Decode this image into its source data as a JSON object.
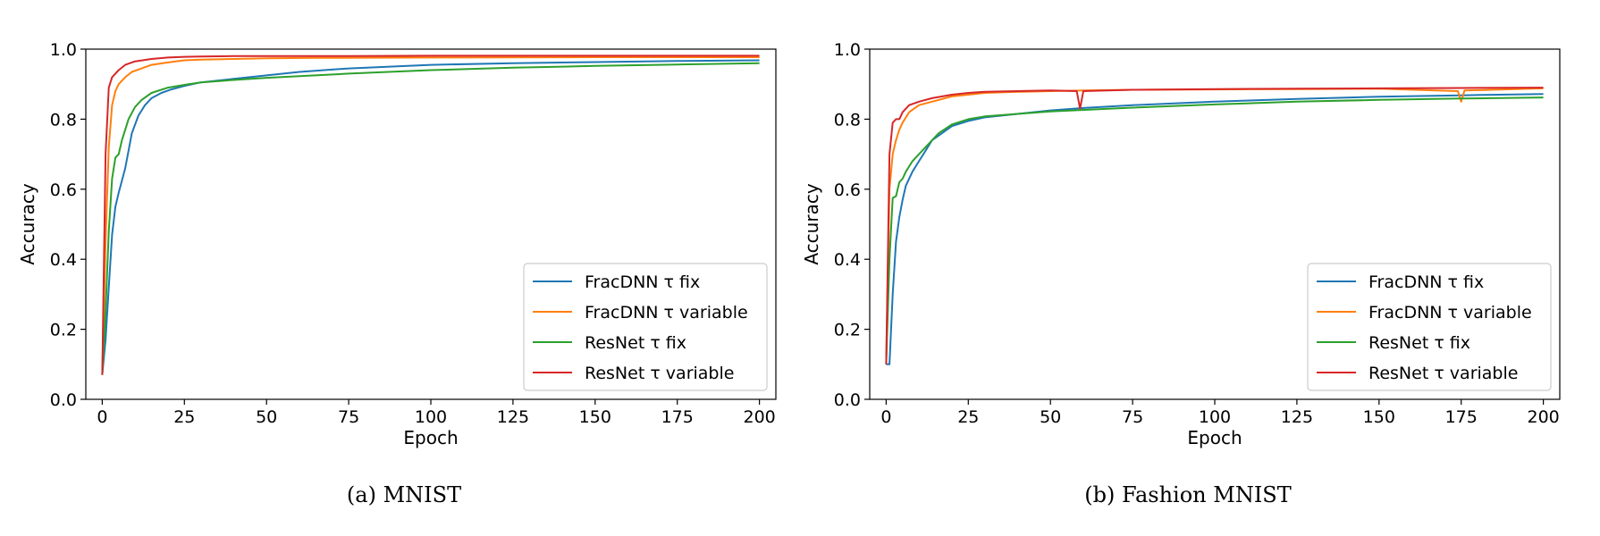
{
  "chart_data": [
    {
      "type": "line",
      "caption": "(a) MNIST",
      "xlabel": "Epoch",
      "ylabel": "Accuracy",
      "xlim": [
        -5,
        205
      ],
      "ylim": [
        0.0,
        1.0
      ],
      "xticks": [
        0,
        25,
        50,
        75,
        100,
        125,
        150,
        175,
        200
      ],
      "yticks": [
        0.0,
        0.2,
        0.4,
        0.6,
        0.8,
        1.0
      ],
      "xtick_labels": [
        "0",
        "25",
        "50",
        "75",
        "100",
        "125",
        "150",
        "175",
        "200"
      ],
      "ytick_labels": [
        "0.0",
        "0.2",
        "0.4",
        "0.6",
        "0.8",
        "1.0"
      ],
      "grid": false,
      "legend_position": "lower-right",
      "series": [
        {
          "name": "FracDNN τ fix",
          "color": "#1f77b4",
          "x": [
            0,
            1,
            2,
            3,
            4,
            5,
            7,
            9,
            11,
            13,
            15,
            18,
            21,
            25,
            30,
            40,
            50,
            60,
            75,
            100,
            125,
            150,
            175,
            200
          ],
          "y": [
            0.07,
            0.17,
            0.32,
            0.47,
            0.55,
            0.59,
            0.66,
            0.76,
            0.81,
            0.84,
            0.86,
            0.875,
            0.885,
            0.895,
            0.905,
            0.915,
            0.925,
            0.935,
            0.945,
            0.955,
            0.96,
            0.963,
            0.966,
            0.968
          ]
        },
        {
          "name": "FracDNN τ variable",
          "color": "#ff7f0e",
          "x": [
            0,
            1,
            2,
            3,
            4,
            5,
            7,
            9,
            12,
            15,
            20,
            25,
            30,
            40,
            50,
            65,
            100,
            150,
            200
          ],
          "y": [
            0.07,
            0.45,
            0.72,
            0.84,
            0.88,
            0.9,
            0.92,
            0.935,
            0.945,
            0.955,
            0.962,
            0.968,
            0.97,
            0.972,
            0.974,
            0.975,
            0.976,
            0.977,
            0.977
          ]
        },
        {
          "name": "ResNet τ fix",
          "color": "#2ca02c",
          "x": [
            0,
            1,
            2,
            3,
            4,
            5,
            6,
            8,
            10,
            12,
            15,
            20,
            25,
            30,
            40,
            50,
            75,
            100,
            125,
            150,
            175,
            200
          ],
          "y": [
            0.07,
            0.25,
            0.48,
            0.63,
            0.69,
            0.7,
            0.74,
            0.8,
            0.835,
            0.855,
            0.875,
            0.89,
            0.898,
            0.905,
            0.912,
            0.918,
            0.93,
            0.94,
            0.947,
            0.952,
            0.956,
            0.96
          ]
        },
        {
          "name": "ResNet τ variable",
          "color": "#d62728",
          "x": [
            0,
            1,
            2,
            3,
            4,
            5,
            7,
            10,
            15,
            20,
            25,
            30,
            40,
            50,
            75,
            100,
            150,
            200
          ],
          "y": [
            0.07,
            0.7,
            0.89,
            0.92,
            0.93,
            0.94,
            0.955,
            0.965,
            0.972,
            0.976,
            0.978,
            0.979,
            0.98,
            0.98,
            0.98,
            0.981,
            0.981,
            0.981
          ]
        }
      ]
    },
    {
      "type": "line",
      "caption": "(b) Fashion MNIST",
      "xlabel": "Epoch",
      "ylabel": "Accuracy",
      "xlim": [
        -5,
        205
      ],
      "ylim": [
        0.0,
        1.0
      ],
      "xticks": [
        0,
        25,
        50,
        75,
        100,
        125,
        150,
        175,
        200
      ],
      "yticks": [
        0.0,
        0.2,
        0.4,
        0.6,
        0.8,
        1.0
      ],
      "xtick_labels": [
        "0",
        "25",
        "50",
        "75",
        "100",
        "125",
        "150",
        "175",
        "200"
      ],
      "ytick_labels": [
        "0.0",
        "0.2",
        "0.4",
        "0.6",
        "0.8",
        "1.0"
      ],
      "grid": false,
      "legend_position": "lower-right",
      "series": [
        {
          "name": "FracDNN τ fix",
          "color": "#1f77b4",
          "x": [
            0,
            1,
            2,
            3,
            4,
            5,
            6,
            8,
            10,
            12,
            14,
            17,
            20,
            25,
            30,
            40,
            50,
            60,
            75,
            100,
            125,
            150,
            175,
            200
          ],
          "y": [
            0.1,
            0.1,
            0.3,
            0.45,
            0.52,
            0.57,
            0.61,
            0.65,
            0.68,
            0.71,
            0.74,
            0.76,
            0.78,
            0.795,
            0.805,
            0.815,
            0.825,
            0.832,
            0.84,
            0.85,
            0.858,
            0.864,
            0.868,
            0.872
          ]
        },
        {
          "name": "FracDNN τ variable",
          "color": "#ff7f0e",
          "x": [
            0,
            1,
            2,
            3,
            4,
            5,
            7,
            10,
            14,
            20,
            25,
            30,
            40,
            50,
            60,
            75,
            100,
            125,
            150,
            174,
            175,
            176,
            200
          ],
          "y": [
            0.1,
            0.6,
            0.7,
            0.74,
            0.77,
            0.79,
            0.82,
            0.84,
            0.85,
            0.865,
            0.87,
            0.875,
            0.878,
            0.88,
            0.882,
            0.884,
            0.885,
            0.886,
            0.887,
            0.88,
            0.85,
            0.882,
            0.888
          ]
        },
        {
          "name": "ResNet τ fix",
          "color": "#2ca02c",
          "x": [
            0,
            1,
            2,
            3,
            4,
            5,
            6,
            8,
            10,
            13,
            16,
            20,
            25,
            30,
            40,
            50,
            75,
            100,
            125,
            150,
            175,
            200
          ],
          "y": [
            0.1,
            0.4,
            0.575,
            0.58,
            0.62,
            0.63,
            0.65,
            0.68,
            0.7,
            0.73,
            0.76,
            0.785,
            0.8,
            0.808,
            0.815,
            0.822,
            0.833,
            0.842,
            0.85,
            0.855,
            0.859,
            0.862
          ]
        },
        {
          "name": "ResNet τ variable",
          "color": "#d62728",
          "x": [
            0,
            1,
            2,
            3,
            4,
            5,
            7,
            10,
            14,
            20,
            25,
            30,
            40,
            50,
            58,
            59,
            60,
            75,
            100,
            125,
            150,
            175,
            200
          ],
          "y": [
            0.1,
            0.7,
            0.79,
            0.8,
            0.8,
            0.82,
            0.84,
            0.85,
            0.86,
            0.87,
            0.875,
            0.878,
            0.88,
            0.882,
            0.88,
            0.83,
            0.88,
            0.884,
            0.886,
            0.887,
            0.888,
            0.889,
            0.89
          ]
        }
      ]
    }
  ]
}
